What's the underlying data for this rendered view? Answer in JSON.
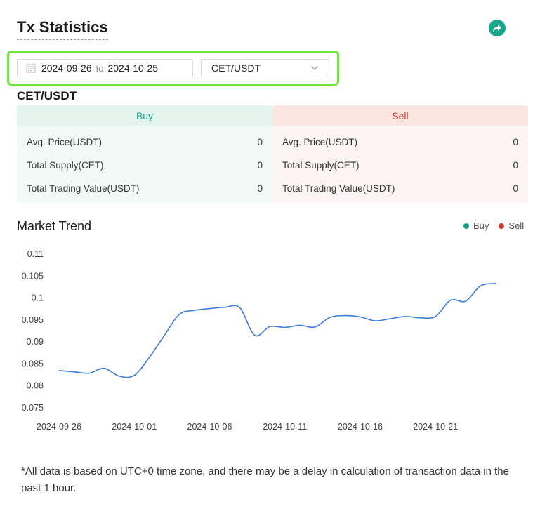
{
  "header": {
    "title": "Tx Statistics",
    "share_icon": "share-arrow-icon"
  },
  "filters": {
    "date_from": "2024-09-26",
    "date_to": "2024-10-25",
    "to_label": "to",
    "pair": "CET/USDT"
  },
  "pair_heading": "CET/USDT",
  "buy": {
    "label": "Buy",
    "rows": [
      {
        "label": "Avg. Price(USDT)",
        "value": "0"
      },
      {
        "label": "Total Supply(CET)",
        "value": "0"
      },
      {
        "label": "Total Trading Value(USDT)",
        "value": "0"
      }
    ]
  },
  "sell": {
    "label": "Sell",
    "rows": [
      {
        "label": "Avg. Price(USDT)",
        "value": "0"
      },
      {
        "label": "Total Supply(CET)",
        "value": "0"
      },
      {
        "label": "Total Trading Value(USDT)",
        "value": "0"
      }
    ]
  },
  "trend": {
    "title": "Market Trend",
    "legend": [
      {
        "name": "Buy",
        "color": "#14a085"
      },
      {
        "name": "Sell",
        "color": "#d23c2c"
      }
    ]
  },
  "chart_data": {
    "type": "line",
    "title": "",
    "xlabel": "",
    "ylabel": "",
    "ylim": [
      0.075,
      0.11
    ],
    "y_ticks": [
      "0.11",
      "0.105",
      "0.1",
      "0.095",
      "0.09",
      "0.085",
      "0.08",
      "0.075"
    ],
    "x_ticks": [
      "2024-09-26",
      "2024-10-01",
      "2024-10-06",
      "2024-10-11",
      "2024-10-16",
      "2024-10-21"
    ],
    "line_color": "#3d7bdc",
    "grid": false,
    "series": [
      {
        "values": [
          [
            "2024-09-26",
            0.0835
          ],
          [
            "2024-09-27",
            0.0832
          ],
          [
            "2024-09-28",
            0.0829
          ],
          [
            "2024-09-29",
            0.084
          ],
          [
            "2024-09-30",
            0.0822
          ],
          [
            "2024-10-01",
            0.0824
          ],
          [
            "2024-10-02",
            0.0865
          ],
          [
            "2024-10-03",
            0.0915
          ],
          [
            "2024-10-04",
            0.0963
          ],
          [
            "2024-10-05",
            0.0972
          ],
          [
            "2024-10-06",
            0.0976
          ],
          [
            "2024-10-07",
            0.0979
          ],
          [
            "2024-10-08",
            0.0978
          ],
          [
            "2024-10-09",
            0.0915
          ],
          [
            "2024-10-10",
            0.0935
          ],
          [
            "2024-10-11",
            0.0933
          ],
          [
            "2024-10-12",
            0.0938
          ],
          [
            "2024-10-13",
            0.0934
          ],
          [
            "2024-10-14",
            0.0956
          ],
          [
            "2024-10-15",
            0.096
          ],
          [
            "2024-10-16",
            0.0957
          ],
          [
            "2024-10-17",
            0.0948
          ],
          [
            "2024-10-18",
            0.0953
          ],
          [
            "2024-10-19",
            0.0958
          ],
          [
            "2024-10-20",
            0.0955
          ],
          [
            "2024-10-21",
            0.0958
          ],
          [
            "2024-10-22",
            0.0995
          ],
          [
            "2024-10-23",
            0.0993
          ],
          [
            "2024-10-24",
            0.1028
          ],
          [
            "2024-10-25",
            0.1033
          ]
        ]
      }
    ]
  },
  "footnote": "*All data is based on UTC+0 time zone, and there may be a delay in calculation of transaction data in the past 1 hour."
}
